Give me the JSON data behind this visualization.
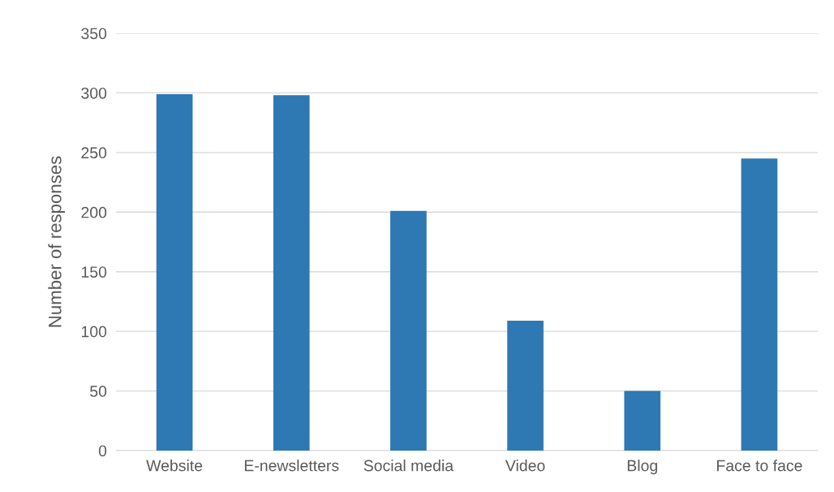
{
  "chart_data": {
    "type": "bar",
    "ylabel": "Number of responses",
    "categories": [
      "Website",
      "E-newsletters",
      "Social media",
      "Video",
      "Blog",
      "Face to face"
    ],
    "values": [
      299,
      298,
      201,
      109,
      50,
      245
    ],
    "color": "#2e78b4",
    "ylim": [
      0,
      350
    ],
    "yticks": [
      0,
      50,
      100,
      150,
      200,
      250,
      300,
      350
    ],
    "grid": "y",
    "legend": false
  }
}
